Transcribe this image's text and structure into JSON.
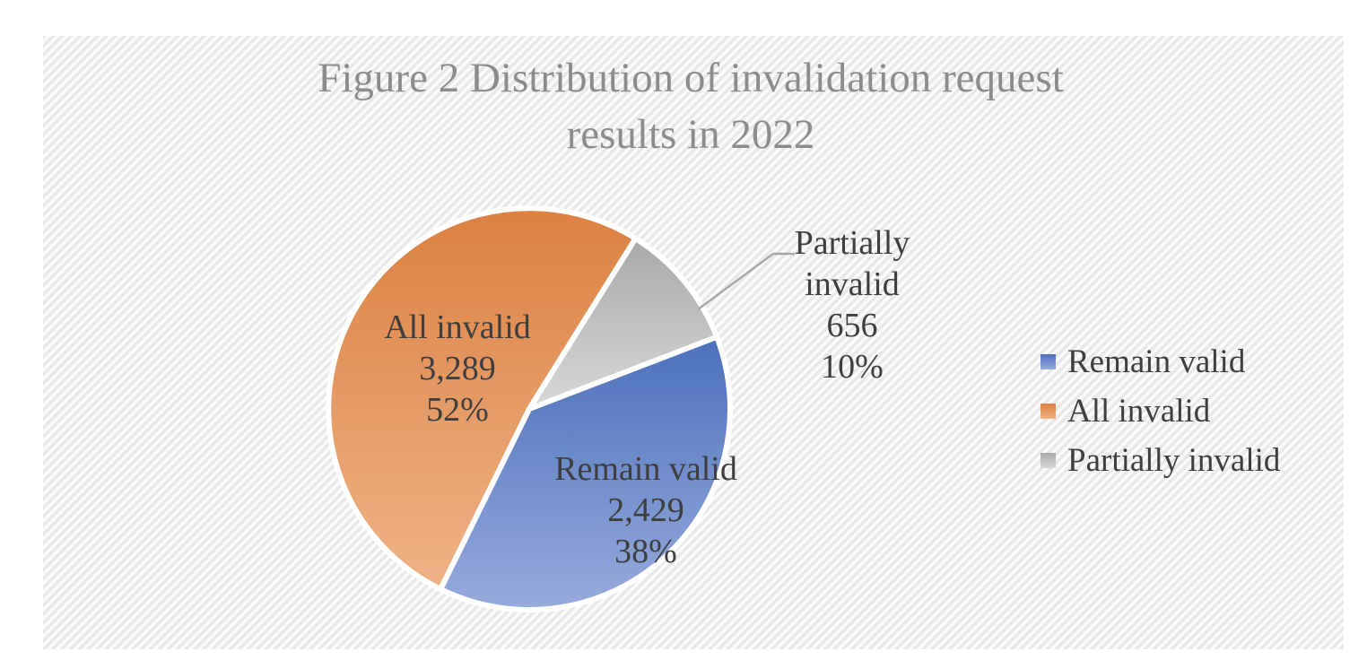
{
  "header": {
    "title_line1": "Figure 2 Distribution of invalidation request",
    "title_line2": "results in 2022"
  },
  "chart_data": {
    "type": "pie",
    "title": "Figure 2 Distribution of invalidation request results in 2022",
    "categories": [
      "Remain valid",
      "All invalid",
      "Partially invalid"
    ],
    "values": [
      2429,
      3289,
      656
    ],
    "percents": [
      38,
      52,
      10
    ],
    "value_labels": [
      "2,429",
      "3,289",
      "656"
    ],
    "percent_labels": [
      "38%",
      "52%",
      "10%"
    ],
    "start_angle_deg": 69,
    "legend_position": "right",
    "slice_ids": [
      "remain-valid",
      "all-invalid",
      "partially-invalid"
    ],
    "series_colors": [
      {
        "top": "#4C70BB",
        "bottom": "#97ABDC"
      },
      {
        "top": "#DB8142",
        "bottom": "#EFB387"
      },
      {
        "top": "#A9A9A9",
        "bottom": "#D8D8D8"
      }
    ],
    "labels": {
      "remain_valid": {
        "name": "Remain valid",
        "value": "2,429",
        "pct": "38%"
      },
      "all_invalid": {
        "name": "All invalid",
        "value": "3,289",
        "pct": "52%"
      },
      "partially_invalid": {
        "name": "Partially invalid",
        "value": "656",
        "pct": "10%"
      }
    },
    "legend_items": [
      "Remain valid",
      "All invalid",
      "Partially invalid"
    ]
  },
  "colors": {
    "title_text": "#8C8C8C",
    "label_text": "#3E3E3E",
    "leader_line": "#A8A8A8",
    "background_stripe": "#E8E8E8",
    "slice_border": "#FFFFFF"
  }
}
